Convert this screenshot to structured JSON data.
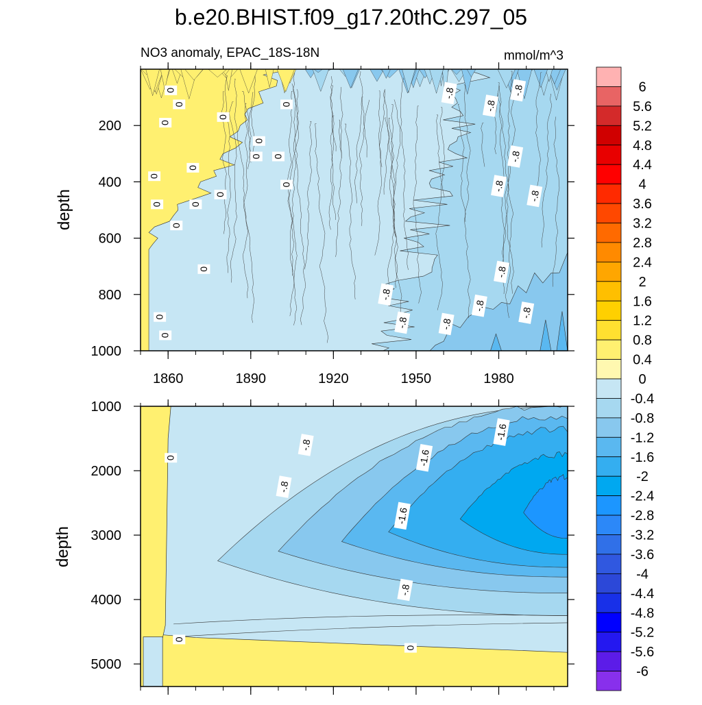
{
  "title": "b.e20.BHIST.f09_g17.20thC.297_05",
  "subtitle_left": "NO3 anomaly, EPAC_18S-18N",
  "subtitle_right": "mmol/m^3",
  "chart_data": [
    {
      "type": "heatmap",
      "panel": "upper",
      "ylabel": "depth",
      "xlim": [
        1850,
        2005
      ],
      "ylim": [
        1000,
        0
      ],
      "x_ticks": [
        "1860",
        "1890",
        "1920",
        "1950",
        "1980"
      ],
      "y_ticks": [
        "200",
        "400",
        "600",
        "800",
        "1000"
      ],
      "contour_labels": [
        {
          "text": "0",
          "x": 1861,
          "y": 75
        },
        {
          "text": "0",
          "x": 1864,
          "y": 125
        },
        {
          "text": "0",
          "x": 1859,
          "y": 190
        },
        {
          "text": "0",
          "x": 1880,
          "y": 170
        },
        {
          "text": "0",
          "x": 1893,
          "y": 255
        },
        {
          "text": "0",
          "x": 1892,
          "y": 310
        },
        {
          "text": "0",
          "x": 1900,
          "y": 310
        },
        {
          "text": "0",
          "x": 1903,
          "y": 125
        },
        {
          "text": "0",
          "x": 1903,
          "y": 410
        },
        {
          "text": "0",
          "x": 1869,
          "y": 350
        },
        {
          "text": "0",
          "x": 1855,
          "y": 380
        },
        {
          "text": "0",
          "x": 1856,
          "y": 480
        },
        {
          "text": "0",
          "x": 1870,
          "y": 480
        },
        {
          "text": "0",
          "x": 1879,
          "y": 445
        },
        {
          "text": "0",
          "x": 1863,
          "y": 555
        },
        {
          "text": "0",
          "x": 1873,
          "y": 710
        },
        {
          "text": "0",
          "x": 1857,
          "y": 880
        },
        {
          "text": "0",
          "x": 1859,
          "y": 945
        },
        {
          "text": "-.8",
          "x": 1962,
          "y": 85
        },
        {
          "text": "-.8",
          "x": 1977,
          "y": 130
        },
        {
          "text": "-.8",
          "x": 1987,
          "y": 75
        },
        {
          "text": "-.8",
          "x": 1986,
          "y": 310
        },
        {
          "text": "-.8",
          "x": 1980,
          "y": 415
        },
        {
          "text": "-.8",
          "x": 1993,
          "y": 450
        },
        {
          "text": "-.8",
          "x": 1981,
          "y": 720
        },
        {
          "text": "-.8",
          "x": 1973,
          "y": 840
        },
        {
          "text": "-.8",
          "x": 1939,
          "y": 800
        },
        {
          "text": "-.8",
          "x": 1945,
          "y": 900
        },
        {
          "text": "-.8",
          "x": 1961,
          "y": 905
        },
        {
          "text": "-.8",
          "x": 1990,
          "y": 865
        }
      ]
    },
    {
      "type": "heatmap",
      "panel": "lower",
      "ylabel": "depth",
      "xlim": [
        1850,
        2005
      ],
      "ylim": [
        5350,
        1000
      ],
      "y_ticks": [
        "1000",
        "2000",
        "3000",
        "4000",
        "5000"
      ],
      "contour_labels": [
        {
          "text": "0",
          "x": 1861,
          "y": 1800
        },
        {
          "text": "-.8",
          "x": 1902,
          "y": 2250
        },
        {
          "text": "-.8",
          "x": 1910,
          "y": 1600
        },
        {
          "text": "-1.6",
          "x": 1953,
          "y": 1800
        },
        {
          "text": "-1.6",
          "x": 1981,
          "y": 1400
        },
        {
          "text": "-1.6",
          "x": 1945,
          "y": 2700
        },
        {
          "text": "-.8",
          "x": 1946,
          "y": 3850
        },
        {
          "text": "0",
          "x": 1864,
          "y": 4620
        },
        {
          "text": "0",
          "x": 1948,
          "y": 4750
        }
      ]
    }
  ],
  "colorbar": {
    "levels": [
      "6",
      "5.6",
      "5.2",
      "4.8",
      "4.4",
      "4",
      "3.6",
      "3.2",
      "2.8",
      "2.4",
      "2",
      "1.6",
      "1.2",
      "0.8",
      "0.4",
      "0",
      "-0.4",
      "-0.8",
      "-1.2",
      "-1.6",
      "-2",
      "-2.4",
      "-2.8",
      "-3.2",
      "-3.6",
      "-4",
      "-4.4",
      "-4.8",
      "-5.2",
      "-5.6",
      "-6"
    ],
    "colors": [
      "#ffb2b2",
      "#e86464",
      "#d42a2a",
      "#d00000",
      "#e80000",
      "#ff0000",
      "#ff2a00",
      "#ff4800",
      "#ff6a00",
      "#ff8a00",
      "#ffa600",
      "#ffbf00",
      "#ffd000",
      "#ffe030",
      "#fff070",
      "#fff8b0",
      "#c6e6f4",
      "#a6d8f0",
      "#88c8ee",
      "#5ab8f0",
      "#34aef0",
      "#00a8f0",
      "#1c96ff",
      "#2c88f8",
      "#3070e8",
      "#3058e0",
      "#2c48d8",
      "#1830e8",
      "#0000ff",
      "#2418f0",
      "#5c1ce8",
      "#8830ec"
    ]
  }
}
